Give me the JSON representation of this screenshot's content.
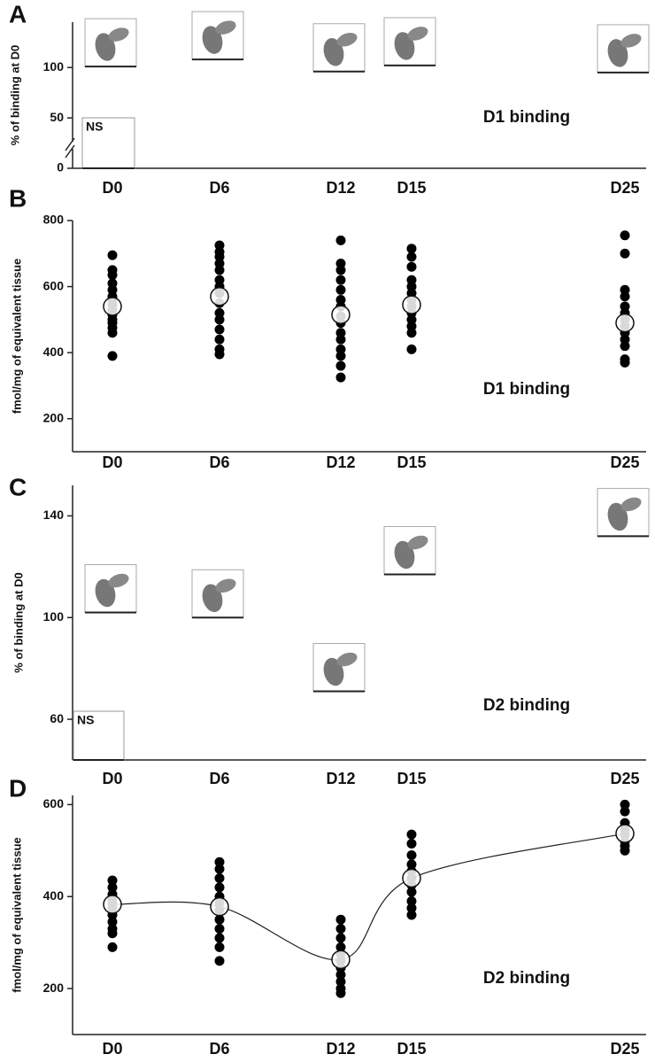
{
  "chart_data": [
    {
      "type": "image-levels",
      "panel_label": "A",
      "y_label": "% of binding at D0",
      "annotation": "D1 binding",
      "ns_label": "NS",
      "categories": [
        "D0",
        "D6",
        "D12",
        "D15",
        "D25"
      ],
      "values": [
        101,
        108,
        96,
        102,
        95
      ],
      "ylim": [
        0,
        145
      ],
      "yticks": [
        0,
        50,
        100
      ]
    },
    {
      "type": "scatter",
      "panel_label": "B",
      "y_label": "fmol/mg of equivalent tissue",
      "annotation": "D1 binding",
      "categories": [
        "D0",
        "D6",
        "D12",
        "D15",
        "D25"
      ],
      "points": [
        [
          695,
          650,
          635,
          610,
          590,
          570,
          560,
          545,
          530,
          515,
          500,
          490,
          475,
          460,
          390
        ],
        [
          725,
          705,
          690,
          670,
          650,
          620,
          600,
          580,
          550,
          520,
          500,
          470,
          440,
          410,
          395
        ],
        [
          740,
          670,
          650,
          620,
          590,
          560,
          540,
          510,
          490,
          460,
          440,
          410,
          390,
          360,
          325
        ],
        [
          715,
          690,
          660,
          620,
          600,
          580,
          560,
          540,
          520,
          500,
          480,
          460,
          410
        ],
        [
          755,
          700,
          590,
          570,
          540,
          520,
          500,
          480,
          460,
          440,
          420,
          380,
          370
        ]
      ],
      "means": [
        540,
        570,
        515,
        545,
        490
      ],
      "line": false,
      "ylim": [
        100,
        800
      ],
      "yticks": [
        200,
        400,
        600,
        800
      ]
    },
    {
      "type": "image-levels",
      "panel_label": "C",
      "y_label": "% of binding at D0",
      "annotation": "D2 binding",
      "ns_label": "NS",
      "categories": [
        "D0",
        "D6",
        "D12",
        "D15",
        "D25"
      ],
      "values": [
        102,
        100,
        71,
        117,
        132
      ],
      "ylim": [
        44,
        152
      ],
      "yticks": [
        60,
        100,
        140
      ]
    },
    {
      "type": "scatter",
      "panel_label": "D",
      "y_label": "fmol/mg of equivalent tissue",
      "annotation": "D2 binding",
      "categories": [
        "D0",
        "D6",
        "D12",
        "D15",
        "D25"
      ],
      "points": [
        [
          435,
          420,
          405,
          395,
          385,
          375,
          360,
          345,
          330,
          320,
          290
        ],
        [
          475,
          460,
          440,
          420,
          400,
          385,
          370,
          350,
          330,
          310,
          290,
          260
        ],
        [
          350,
          330,
          310,
          290,
          275,
          260,
          245,
          230,
          215,
          200,
          190
        ],
        [
          535,
          515,
          490,
          470,
          455,
          440,
          425,
          410,
          390,
          375,
          360
        ],
        [
          600,
          585,
          560,
          545,
          535,
          520,
          510,
          500
        ]
      ],
      "means": [
        383,
        378,
        263,
        440,
        537
      ],
      "line": true,
      "ylim": [
        100,
        620
      ],
      "yticks": [
        200,
        400,
        600
      ]
    }
  ]
}
